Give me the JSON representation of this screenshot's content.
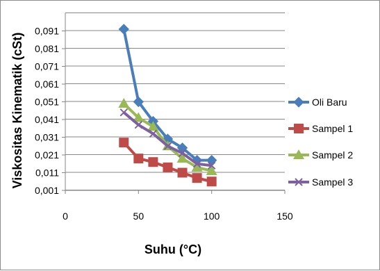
{
  "chart_data": {
    "type": "line",
    "xlabel": "Suhu (°C)",
    "ylabel": "Viskositas Kinematik (cSt)",
    "xlim": [
      0,
      150
    ],
    "ylim": [
      0.001,
      0.101
    ],
    "xticks": [
      "0",
      "50",
      "100",
      "150"
    ],
    "yticks": [
      "0,001",
      "0,011",
      "0,021",
      "0,031",
      "0,041",
      "0,051",
      "0,061",
      "0,071",
      "0,081",
      "0,091"
    ],
    "grid": "horizontal",
    "legend_position": "right",
    "x": [
      40,
      50,
      60,
      70,
      80,
      90,
      100
    ],
    "series": [
      {
        "name": "Oli Baru",
        "color": "#4a7ebb",
        "marker": "diamond",
        "values": [
          0.092,
          0.051,
          0.04,
          0.03,
          0.025,
          0.018,
          0.018
        ]
      },
      {
        "name": "Sampel 1",
        "color": "#be4b48",
        "marker": "square",
        "values": [
          0.028,
          0.019,
          0.017,
          0.014,
          0.011,
          0.008,
          0.006
        ]
      },
      {
        "name": "Sampel 2",
        "color": "#98b954",
        "marker": "triangle",
        "values": [
          0.05,
          0.042,
          0.037,
          0.026,
          0.019,
          0.014,
          0.012
        ]
      },
      {
        "name": "Sampel 3",
        "color": "#7d60a0",
        "marker": "x",
        "values": [
          0.045,
          0.038,
          0.033,
          0.026,
          0.022,
          0.016,
          0.015
        ]
      }
    ]
  }
}
